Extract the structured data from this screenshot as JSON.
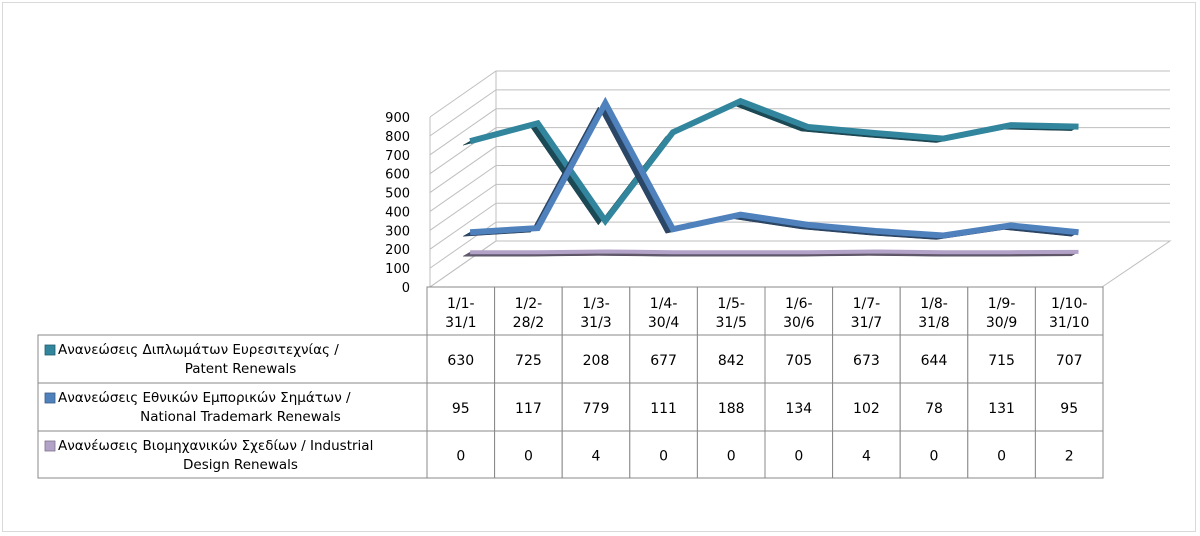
{
  "chart_data": {
    "type": "line",
    "categories": [
      [
        "1/1-",
        "31/1"
      ],
      [
        "1/2-",
        "28/2"
      ],
      [
        "1/3-",
        "31/3"
      ],
      [
        "1/4-",
        "30/4"
      ],
      [
        "1/5-",
        "31/5"
      ],
      [
        "1/6-",
        "30/6"
      ],
      [
        "1/7-",
        "31/7"
      ],
      [
        "1/8-",
        "31/8"
      ],
      [
        "1/9-",
        "30/9"
      ],
      [
        "1/10-",
        "31/10"
      ]
    ],
    "y_ticks": [
      "0",
      "100",
      "200",
      "300",
      "400",
      "500",
      "600",
      "700",
      "800",
      "900"
    ],
    "ylim": [
      0,
      900
    ],
    "grid": true,
    "legend": "table-below",
    "series": [
      {
        "name_lines": [
          "Ανανεώσεις Διπλωμάτων Ευρεσιτεχνίας  /",
          "Patent Renewals"
        ],
        "values": [
          630,
          725,
          208,
          677,
          842,
          705,
          673,
          644,
          715,
          707
        ],
        "labels": [
          "630",
          "725",
          "208",
          "677",
          "842",
          "705",
          "673",
          "644",
          "715",
          "707"
        ],
        "color": "#31859C"
      },
      {
        "name_lines": [
          "Ανανεώσεις Εθνικών Εμπορικών Σημάτων /",
          "National Trademark Renewals"
        ],
        "values": [
          95,
          117,
          779,
          111,
          188,
          134,
          102,
          78,
          131,
          95
        ],
        "labels": [
          "95",
          "117",
          "779",
          "111",
          "188",
          "134",
          "102",
          "78",
          "131",
          "95"
        ],
        "color": "#4F81BD"
      },
      {
        "name_lines": [
          "Ανανέωσεις Βιομηχανικών Σχεδίων / Industrial",
          "Design Renewals"
        ],
        "values": [
          0,
          0,
          4,
          0,
          0,
          0,
          4,
          0,
          0,
          2
        ],
        "labels": [
          "0",
          "0",
          "4",
          "0",
          "0",
          "0",
          "4",
          "0",
          "0",
          "2"
        ],
        "color": "#B3A2C7"
      }
    ]
  }
}
